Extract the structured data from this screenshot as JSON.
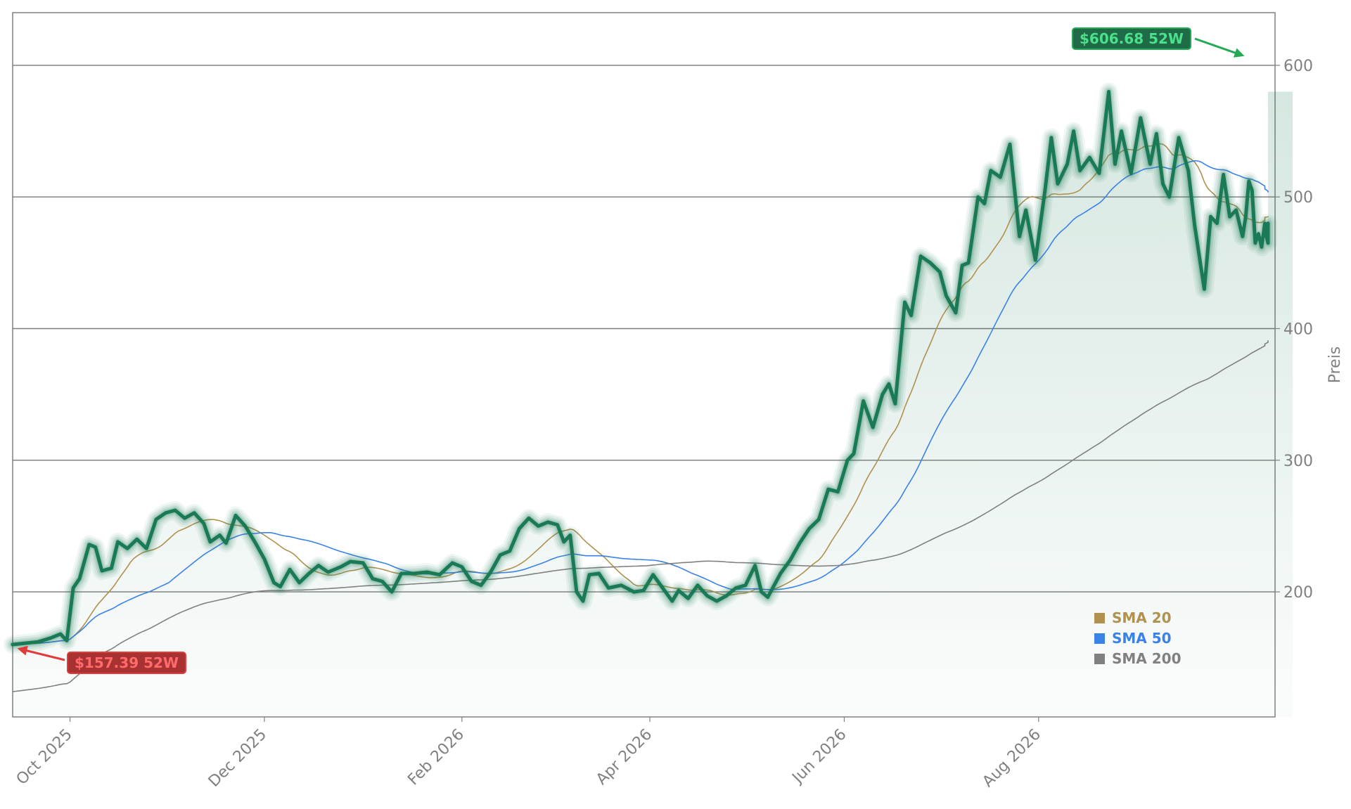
{
  "chart_data": {
    "type": "line",
    "title": "",
    "xlabel": "",
    "ylabel": "Preis",
    "ylim": [
      105,
      640
    ],
    "xlim": [
      "2025-09-13",
      "2026-10-12"
    ],
    "grid": "horizontal",
    "y_axis_side": "right",
    "y_ticks": [
      200,
      300,
      400,
      500,
      600
    ],
    "x_ticks": [
      {
        "date": "2025-10-01",
        "label": "Oct 2025"
      },
      {
        "date": "2025-12-01",
        "label": "Dec 2025"
      },
      {
        "date": "2026-02-01",
        "label": "Feb 2026"
      },
      {
        "date": "2026-04-01",
        "label": "Apr 2026"
      },
      {
        "date": "2026-06-01",
        "label": "Jun 2026"
      },
      {
        "date": "2026-08-01",
        "label": "Aug 2026"
      }
    ],
    "legend": {
      "position": "lower-right",
      "entries": [
        {
          "label": "SMA 20",
          "color": "#b0914f"
        },
        {
          "label": "SMA 50",
          "color": "#3b82e6"
        },
        {
          "label": "SMA 200",
          "color": "#808080"
        }
      ]
    },
    "price_color": "#1a7a55",
    "annotations": [
      {
        "text": "$606.68 52W",
        "date": "2026-10-05",
        "value": 606.68,
        "color": "#22aa55",
        "bg": "#1f6b48",
        "fg": "#4ce08a",
        "kind": "high"
      },
      {
        "text": "$157.39 52W",
        "date": "2025-09-14",
        "value": 157.39,
        "color": "#e03c3c",
        "bg": "#a83232",
        "fg": "#ff6b6b",
        "kind": "low"
      }
    ],
    "series": [
      {
        "name": "price",
        "points": [
          [
            "2025-09-13",
            160
          ],
          [
            "2025-09-17",
            161
          ],
          [
            "2025-09-21",
            162
          ],
          [
            "2025-09-25",
            165
          ],
          [
            "2025-09-28",
            168
          ],
          [
            "2025-09-30",
            163
          ],
          [
            "2025-10-02",
            203
          ],
          [
            "2025-10-04",
            210
          ],
          [
            "2025-10-07",
            236
          ],
          [
            "2025-10-09",
            234
          ],
          [
            "2025-10-11",
            216
          ],
          [
            "2025-10-14",
            218
          ],
          [
            "2025-10-16",
            238
          ],
          [
            "2025-10-19",
            233
          ],
          [
            "2025-10-22",
            240
          ],
          [
            "2025-10-25",
            233
          ],
          [
            "2025-10-28",
            255
          ],
          [
            "2025-10-31",
            260
          ],
          [
            "2025-11-03",
            262
          ],
          [
            "2025-11-06",
            256
          ],
          [
            "2025-11-09",
            260
          ],
          [
            "2025-11-12",
            252
          ],
          [
            "2025-11-14",
            238
          ],
          [
            "2025-11-17",
            243
          ],
          [
            "2025-11-19",
            237
          ],
          [
            "2025-11-22",
            258
          ],
          [
            "2025-11-25",
            250
          ],
          [
            "2025-11-28",
            238
          ],
          [
            "2025-12-01",
            225
          ],
          [
            "2025-12-04",
            207
          ],
          [
            "2025-12-06",
            204
          ],
          [
            "2025-12-09",
            217
          ],
          [
            "2025-12-12",
            207
          ],
          [
            "2025-12-15",
            214
          ],
          [
            "2025-12-18",
            220
          ],
          [
            "2025-12-21",
            215
          ],
          [
            "2025-12-25",
            219
          ],
          [
            "2025-12-28",
            223
          ],
          [
            "2026-01-01",
            222
          ],
          [
            "2026-01-04",
            210
          ],
          [
            "2026-01-07",
            208
          ],
          [
            "2026-01-10",
            200
          ],
          [
            "2026-01-13",
            214
          ],
          [
            "2026-01-17",
            214
          ],
          [
            "2026-01-21",
            215
          ],
          [
            "2026-01-25",
            213
          ],
          [
            "2026-01-29",
            222
          ],
          [
            "2026-02-01",
            219
          ],
          [
            "2026-02-04",
            208
          ],
          [
            "2026-02-07",
            205
          ],
          [
            "2026-02-10",
            215
          ],
          [
            "2026-02-13",
            228
          ],
          [
            "2026-02-16",
            231
          ],
          [
            "2026-02-19",
            248
          ],
          [
            "2026-02-22",
            256
          ],
          [
            "2026-02-25",
            250
          ],
          [
            "2026-02-28",
            253
          ],
          [
            "2026-03-03",
            251
          ],
          [
            "2026-03-05",
            238
          ],
          [
            "2026-03-07",
            243
          ],
          [
            "2026-03-09",
            200
          ],
          [
            "2026-03-11",
            193
          ],
          [
            "2026-03-13",
            213
          ],
          [
            "2026-03-16",
            214
          ],
          [
            "2026-03-19",
            203
          ],
          [
            "2026-03-23",
            205
          ],
          [
            "2026-03-27",
            200
          ],
          [
            "2026-03-30",
            201
          ],
          [
            "2026-04-02",
            213
          ],
          [
            "2026-04-05",
            203
          ],
          [
            "2026-04-08",
            193
          ],
          [
            "2026-04-10",
            201
          ],
          [
            "2026-04-13",
            195
          ],
          [
            "2026-04-16",
            205
          ],
          [
            "2026-04-19",
            197
          ],
          [
            "2026-04-22",
            193
          ],
          [
            "2026-04-25",
            197
          ],
          [
            "2026-04-28",
            203
          ],
          [
            "2026-05-01",
            205
          ],
          [
            "2026-05-04",
            220
          ],
          [
            "2026-05-06",
            200
          ],
          [
            "2026-05-08",
            196
          ],
          [
            "2026-05-12",
            214
          ],
          [
            "2026-05-15",
            224
          ],
          [
            "2026-05-18",
            237
          ],
          [
            "2026-05-21",
            248
          ],
          [
            "2026-05-24",
            255
          ],
          [
            "2026-05-27",
            278
          ],
          [
            "2026-05-30",
            276
          ],
          [
            "2026-06-02",
            300
          ],
          [
            "2026-06-04",
            305
          ],
          [
            "2026-06-07",
            345
          ],
          [
            "2026-06-10",
            325
          ],
          [
            "2026-06-13",
            350
          ],
          [
            "2026-06-15",
            358
          ],
          [
            "2026-06-17",
            343
          ],
          [
            "2026-06-20",
            420
          ],
          [
            "2026-06-22",
            410
          ],
          [
            "2026-06-25",
            455
          ],
          [
            "2026-06-28",
            450
          ],
          [
            "2026-07-01",
            443
          ],
          [
            "2026-07-03",
            425
          ],
          [
            "2026-07-06",
            412
          ],
          [
            "2026-07-08",
            448
          ],
          [
            "2026-07-10",
            450
          ],
          [
            "2026-07-13",
            500
          ],
          [
            "2026-07-15",
            495
          ],
          [
            "2026-07-17",
            520
          ],
          [
            "2026-07-20",
            515
          ],
          [
            "2026-07-23",
            540
          ],
          [
            "2026-07-26",
            470
          ],
          [
            "2026-07-28",
            490
          ],
          [
            "2026-07-31",
            452
          ],
          [
            "2026-08-03",
            505
          ],
          [
            "2026-08-05",
            545
          ],
          [
            "2026-08-07",
            510
          ],
          [
            "2026-08-10",
            525
          ],
          [
            "2026-08-12",
            550
          ],
          [
            "2026-08-14",
            520
          ],
          [
            "2026-08-17",
            530
          ],
          [
            "2026-08-20",
            518
          ],
          [
            "2026-08-23",
            580
          ],
          [
            "2026-08-25",
            525
          ],
          [
            "2026-08-27",
            550
          ],
          [
            "2026-08-30",
            518
          ],
          [
            "2026-09-02",
            560
          ],
          [
            "2026-09-05",
            525
          ],
          [
            "2026-09-07",
            548
          ],
          [
            "2026-09-09",
            510
          ],
          [
            "2026-09-11",
            500
          ],
          [
            "2026-09-14",
            545
          ],
          [
            "2026-09-17",
            520
          ],
          [
            "2026-09-19",
            478
          ],
          [
            "2026-09-22",
            430
          ],
          [
            "2026-09-24",
            485
          ],
          [
            "2026-09-26",
            480
          ],
          [
            "2026-09-28",
            517
          ],
          [
            "2026-09-30",
            485
          ],
          [
            "2026-10-02",
            490
          ],
          [
            "2026-10-04",
            470
          ],
          [
            "2026-10-05",
            485
          ],
          [
            "2026-10-06",
            512
          ],
          [
            "2026-10-07",
            505
          ],
          [
            "2026-10-08",
            465
          ],
          [
            "2026-10-09",
            472
          ],
          [
            "2026-10-10",
            462
          ],
          [
            "2026-10-11",
            480
          ],
          [
            "2026-10-11",
            475
          ],
          [
            "2026-10-12",
            465
          ],
          [
            "2026-10-12",
            480
          ]
        ]
      }
    ]
  }
}
